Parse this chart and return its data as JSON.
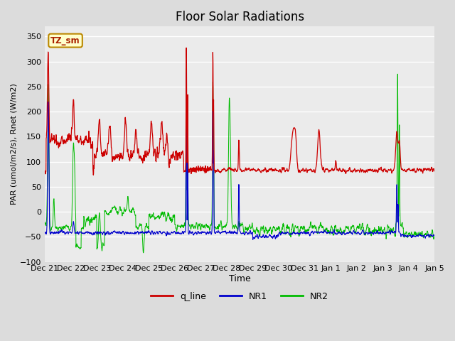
{
  "title": "Floor Solar Radiations",
  "xlabel": "Time",
  "ylabel": "PAR (umol/m2/s), Rnet (W/m2)",
  "ylim": [
    -100,
    370
  ],
  "yticks": [
    -100,
    -50,
    0,
    50,
    100,
    150,
    200,
    250,
    300,
    350
  ],
  "xtick_labels": [
    "Dec 21",
    "Dec 22",
    "Dec 23",
    "Dec 24",
    "Dec 25",
    "Dec 26",
    "Dec 27",
    "Dec 28",
    "Dec 29",
    "Dec 30",
    "Dec 31",
    "Jan 1",
    "Jan 2",
    "Jan 3",
    "Jan 4",
    "Jan 5"
  ],
  "bg_color": "#dcdcdc",
  "plot_bg_color": "#ebebeb",
  "legend_label": "TZ_sm",
  "line_colors": {
    "q_line": "#cc0000",
    "NR1": "#0000cc",
    "NR2": "#00bb00"
  },
  "line_labels": [
    "q_line",
    "NR1",
    "NR2"
  ],
  "n_points": 2000,
  "random_seed": 7
}
